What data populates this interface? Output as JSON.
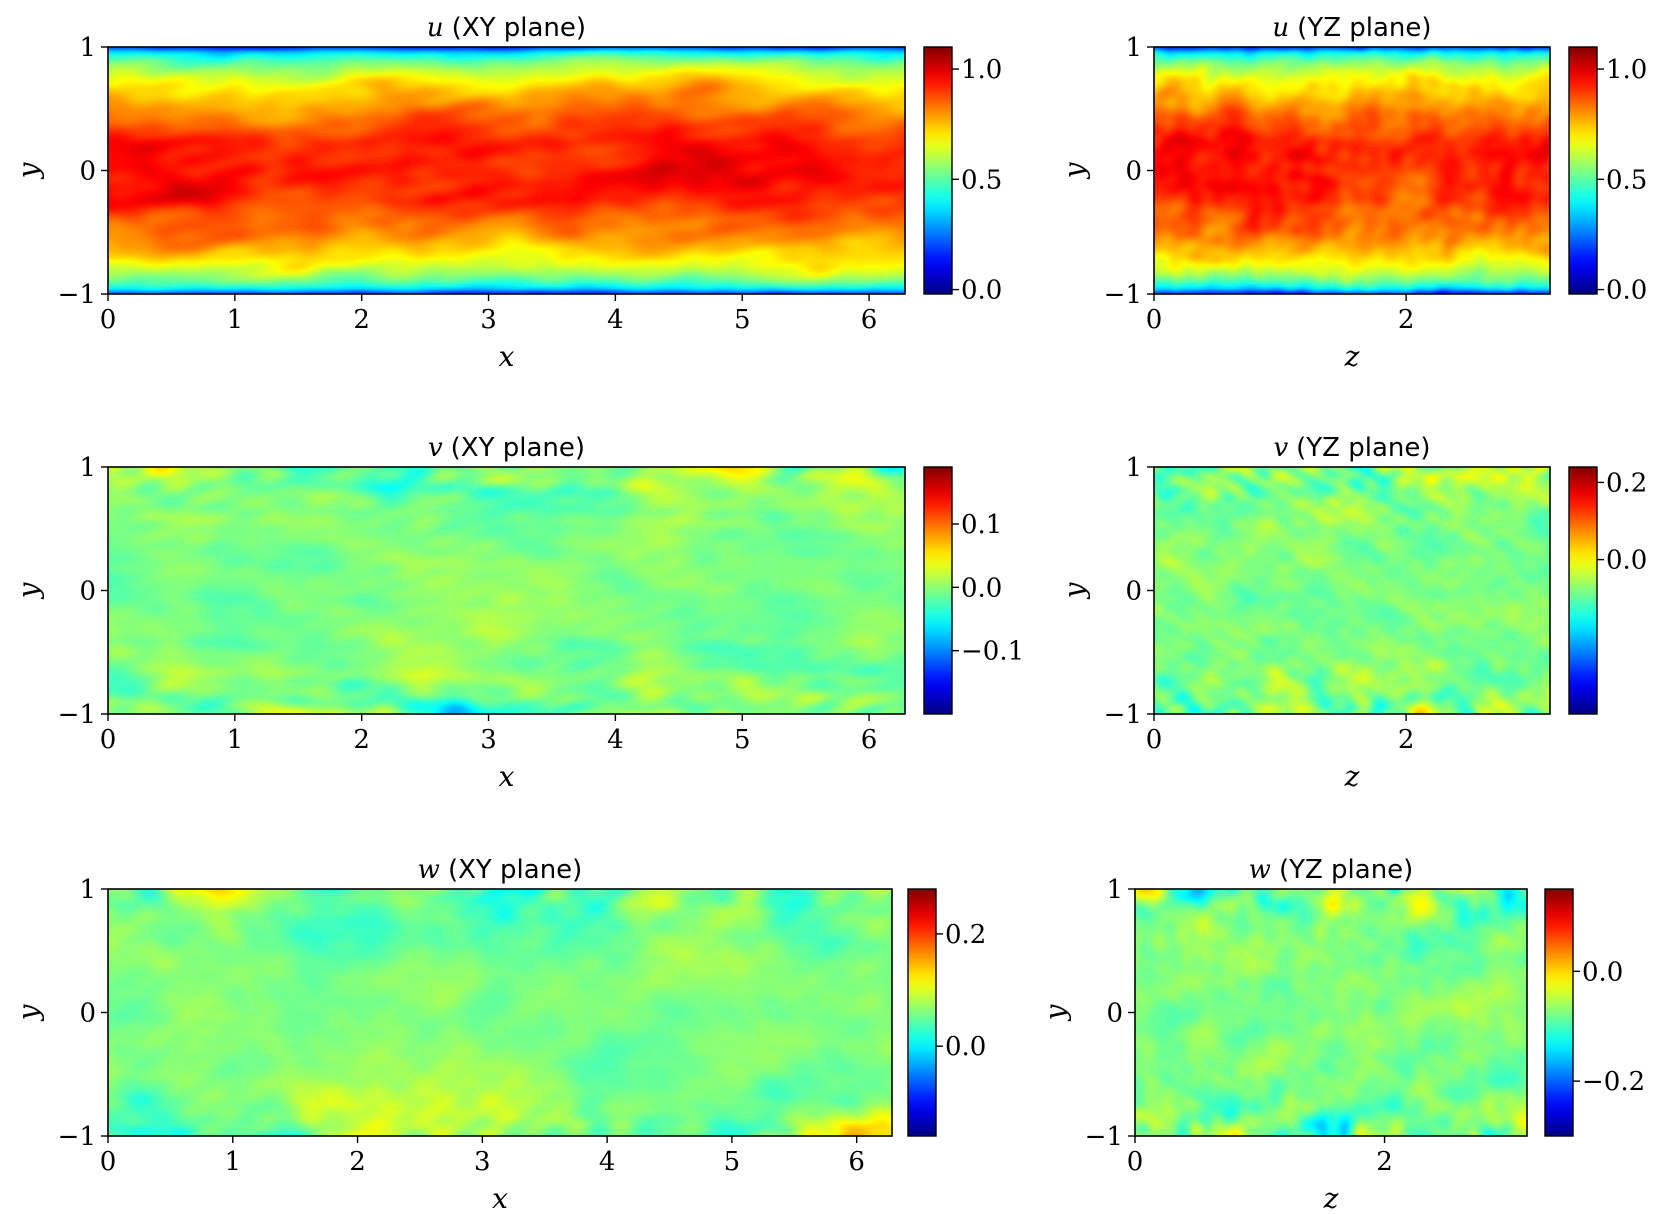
{
  "chart_data": [
    {
      "type": "heatmap",
      "title_var": "u",
      "title_plane": "(XY plane)",
      "xlabel": "x",
      "ylabel": "y",
      "xlim": [
        0,
        6.2832
      ],
      "ylim": [
        -1,
        1
      ],
      "xticks": [
        0,
        1,
        2,
        3,
        4,
        5,
        6
      ],
      "yticks": [
        -1,
        0,
        1
      ],
      "colorbar": {
        "min": -0.02,
        "max": 1.1,
        "ticks": [
          0.0,
          0.5,
          1.0
        ],
        "labels": [
          "0.0",
          "0.5",
          "1.0"
        ]
      },
      "field": "streamwise velocity: high in channel core, low near walls",
      "colormap": "jet"
    },
    {
      "type": "heatmap",
      "title_var": "u",
      "title_plane": "(YZ plane)",
      "xlabel": "z",
      "ylabel": "y",
      "xlim": [
        0,
        3.1416
      ],
      "ylim": [
        -1,
        1
      ],
      "xticks": [
        0,
        2
      ],
      "yticks": [
        -1,
        0,
        1
      ],
      "colorbar": {
        "min": -0.02,
        "max": 1.1,
        "ticks": [
          0.0,
          0.5,
          1.0
        ],
        "labels": [
          "0.0",
          "0.5",
          "1.0"
        ]
      },
      "colormap": "jet"
    },
    {
      "type": "heatmap",
      "title_var": "v",
      "title_plane": "(XY plane)",
      "xlabel": "x",
      "ylabel": "y",
      "xlim": [
        0,
        6.2832
      ],
      "ylim": [
        -1,
        1
      ],
      "xticks": [
        0,
        1,
        2,
        3,
        4,
        5,
        6
      ],
      "yticks": [
        -1,
        0,
        1
      ],
      "colorbar": {
        "min": -0.2,
        "max": 0.19,
        "ticks": [
          -0.1,
          0.0,
          0.1
        ],
        "labels": [
          "−0.1",
          "0.0",
          "0.1"
        ]
      },
      "colormap": "jet"
    },
    {
      "type": "heatmap",
      "title_var": "v",
      "title_plane": "(YZ plane)",
      "xlabel": "z",
      "ylabel": "y",
      "xlim": [
        0,
        3.1416
      ],
      "ylim": [
        -1,
        1
      ],
      "xticks": [
        0,
        2
      ],
      "yticks": [
        -1,
        0,
        1
      ],
      "colorbar": {
        "min": -0.4,
        "max": 0.24,
        "ticks": [
          0.0,
          0.2
        ],
        "labels": [
          "0.0",
          "0.2"
        ]
      },
      "colormap": "jet"
    },
    {
      "type": "heatmap",
      "title_var": "w",
      "title_plane": "(XY plane)",
      "xlabel": "x",
      "ylabel": "y",
      "xlim": [
        0,
        6.2832
      ],
      "ylim": [
        -1,
        1
      ],
      "xticks": [
        0,
        1,
        2,
        3,
        4,
        5,
        6
      ],
      "yticks": [
        -1,
        0,
        1
      ],
      "colorbar": {
        "min": -0.16,
        "max": 0.28,
        "ticks": [
          0.0,
          0.2
        ],
        "labels": [
          "0.0",
          "0.2"
        ]
      },
      "colormap": "jet"
    },
    {
      "type": "heatmap",
      "title_var": "w",
      "title_plane": "(YZ plane)",
      "xlabel": "z",
      "ylabel": "y",
      "xlim": [
        0,
        3.1416
      ],
      "ylim": [
        -1,
        1
      ],
      "xticks": [
        0,
        2
      ],
      "yticks": [
        -1,
        0,
        1
      ],
      "colorbar": {
        "min": -0.3,
        "max": 0.15,
        "ticks": [
          -0.2,
          0.0
        ],
        "labels": [
          "−0.2",
          "0.0"
        ]
      },
      "colormap": "jet"
    }
  ]
}
